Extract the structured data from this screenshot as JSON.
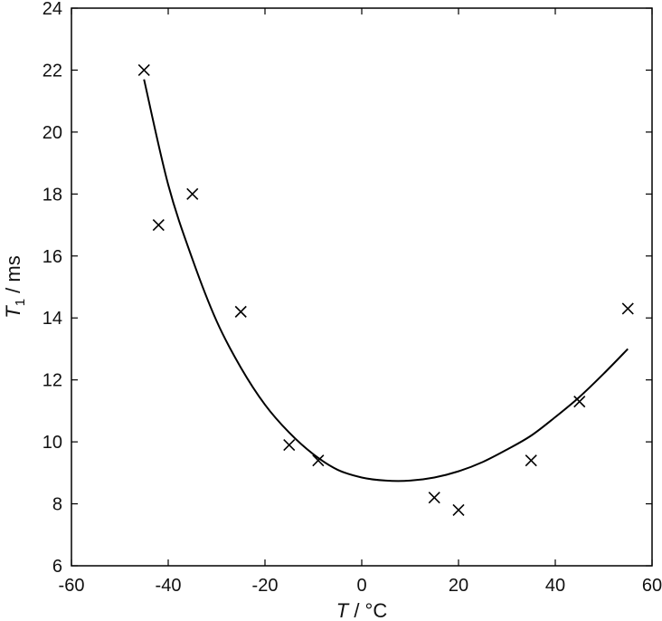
{
  "chart_data": {
    "type": "scatter",
    "xlabel": {
      "var": "T",
      "unit": " / °C"
    },
    "ylabel": {
      "var": "T",
      "sub": "1",
      "unit": " / ms"
    },
    "xlim": [
      -60,
      60
    ],
    "ylim": [
      6,
      24
    ],
    "xticks": [
      -60,
      -40,
      -20,
      0,
      20,
      40,
      60
    ],
    "yticks": [
      6,
      8,
      10,
      12,
      14,
      16,
      18,
      20,
      22,
      24
    ],
    "grid": false,
    "series": [
      {
        "kind": "markers",
        "marker": "x",
        "x": [
          -45,
          -42,
          -35,
          -25,
          -15,
          -9,
          15,
          20,
          35,
          45,
          55
        ],
        "y": [
          22.0,
          17.0,
          18.0,
          14.2,
          9.9,
          9.4,
          8.2,
          7.8,
          9.4,
          11.3,
          14.3
        ]
      },
      {
        "kind": "fit-curve",
        "x": [
          -45,
          -40,
          -35,
          -30,
          -25,
          -20,
          -15,
          -10,
          -5,
          0,
          5,
          10,
          15,
          20,
          25,
          30,
          35,
          40,
          45,
          50,
          55
        ],
        "y": [
          21.7,
          18.3,
          15.9,
          13.9,
          12.4,
          11.2,
          10.3,
          9.6,
          9.1,
          8.85,
          8.75,
          8.75,
          8.85,
          9.05,
          9.35,
          9.75,
          10.2,
          10.8,
          11.45,
          12.2,
          13.0
        ]
      }
    ],
    "colors": {
      "line": "#000000",
      "marker": "#000000",
      "axes": "#000000"
    }
  }
}
